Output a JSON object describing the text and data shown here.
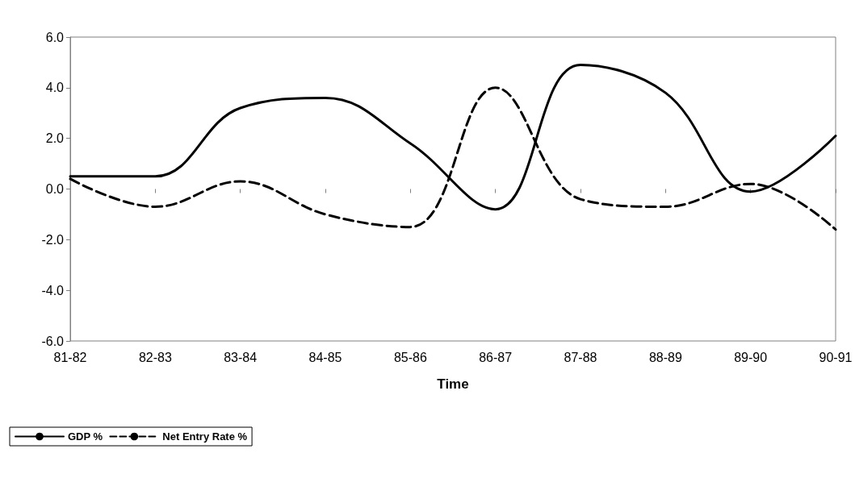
{
  "chart_data": {
    "type": "line",
    "xlabel": "Time",
    "categories": [
      "81-82",
      "82-83",
      "83-84",
      "84-85",
      "85-86",
      "86-87",
      "87-88",
      "88-89",
      "89-90",
      "90-91"
    ],
    "series": [
      {
        "name": "GDP %",
        "color": "#000000",
        "line_style": "solid",
        "values": [
          0.5,
          0.5,
          3.2,
          3.6,
          1.8,
          -0.8,
          4.9,
          3.8,
          -0.1,
          2.1
        ]
      },
      {
        "name": "Net Entry Rate %",
        "color": "#000000",
        "line_style": "dashed",
        "values": [
          0.4,
          -0.7,
          0.3,
          -1.0,
          -1.5,
          4.0,
          -0.4,
          -0.7,
          0.2,
          -1.6
        ]
      }
    ],
    "ylim": [
      -6,
      6
    ],
    "yticks": [
      {
        "value": -6,
        "label": "-6.0"
      },
      {
        "value": -4,
        "label": "-4.0"
      },
      {
        "value": -2,
        "label": "-2.0"
      },
      {
        "value": 0,
        "label": "0.0"
      },
      {
        "value": 2,
        "label": "2.0"
      },
      {
        "value": 4,
        "label": "4.0"
      },
      {
        "value": 6,
        "label": "6.0"
      }
    ],
    "grid": false,
    "legend": "bottom left",
    "marker": "none"
  }
}
